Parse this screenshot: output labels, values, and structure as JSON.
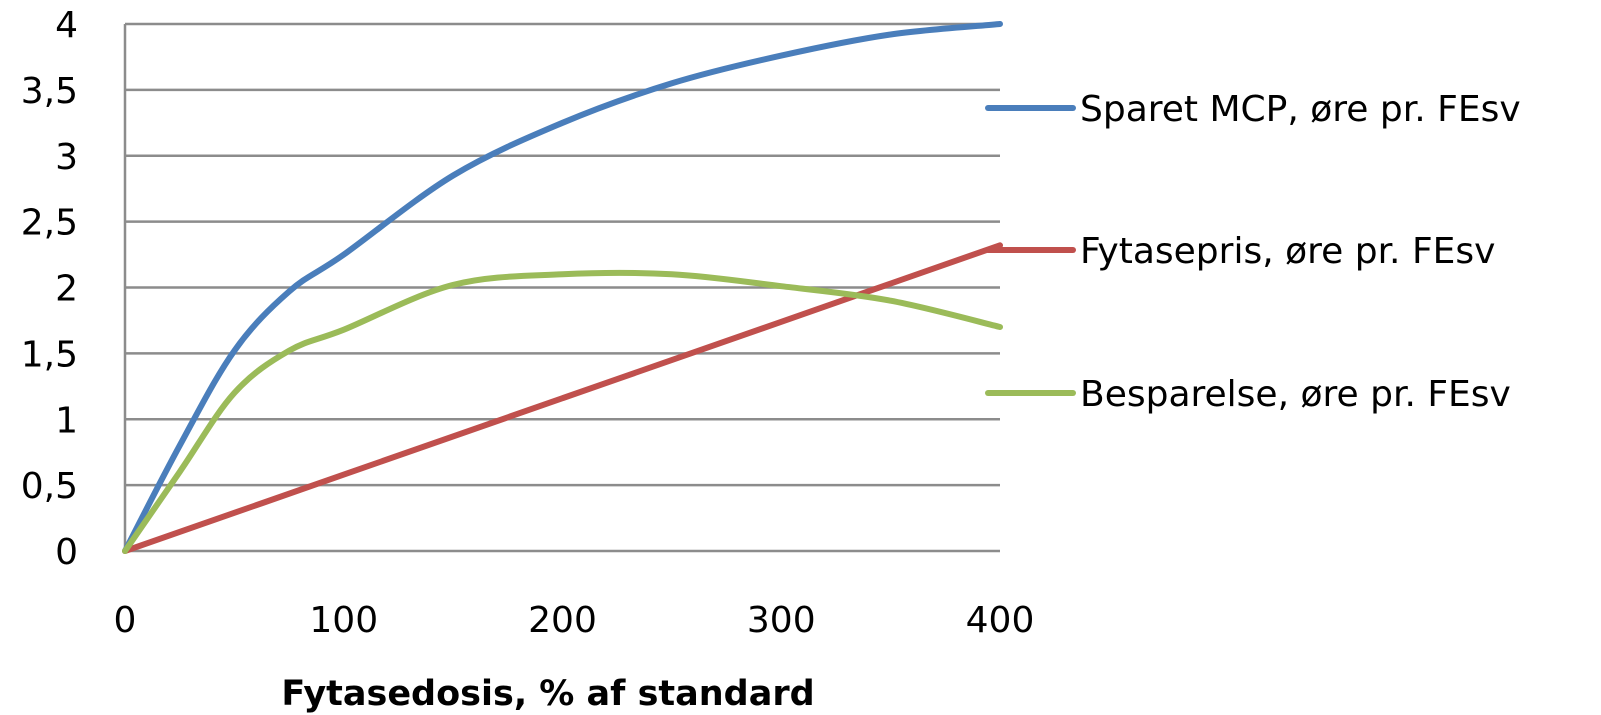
{
  "chart_data": {
    "type": "line",
    "title": "",
    "xlabel": "Fytasedosis, % af standard",
    "ylabel": "",
    "xlim": [
      0,
      400
    ],
    "ylim": [
      0,
      4
    ],
    "grid": true,
    "legend_position": "right",
    "x_ticks": [
      "0",
      "100",
      "200",
      "300",
      "400"
    ],
    "y_ticks": [
      "0",
      "0,5",
      "1",
      "1,5",
      "2",
      "2,5",
      "3",
      "3,5",
      "4"
    ],
    "series": [
      {
        "name": "Sparet MCP, øre pr. FEsv",
        "color": "#4a7ebb",
        "x": [
          0,
          25,
          50,
          75,
          100,
          150,
          200,
          250,
          300,
          350,
          400
        ],
        "y": [
          0,
          0.8,
          1.52,
          1.97,
          2.25,
          2.85,
          3.25,
          3.55,
          3.76,
          3.92,
          4.0
        ]
      },
      {
        "name": "Fytasepris, øre pr. FEsv",
        "color": "#c0504d",
        "x": [
          0,
          100,
          200,
          300,
          400
        ],
        "y": [
          0,
          0.58,
          1.16,
          1.74,
          2.32
        ]
      },
      {
        "name": "Besparelse, øre pr. FEsv",
        "color": "#9bbb59",
        "x": [
          0,
          25,
          50,
          75,
          100,
          150,
          200,
          250,
          300,
          350,
          400
        ],
        "y": [
          0,
          0.6,
          1.2,
          1.52,
          1.68,
          2.02,
          2.1,
          2.1,
          2.01,
          1.9,
          1.7
        ]
      }
    ]
  }
}
